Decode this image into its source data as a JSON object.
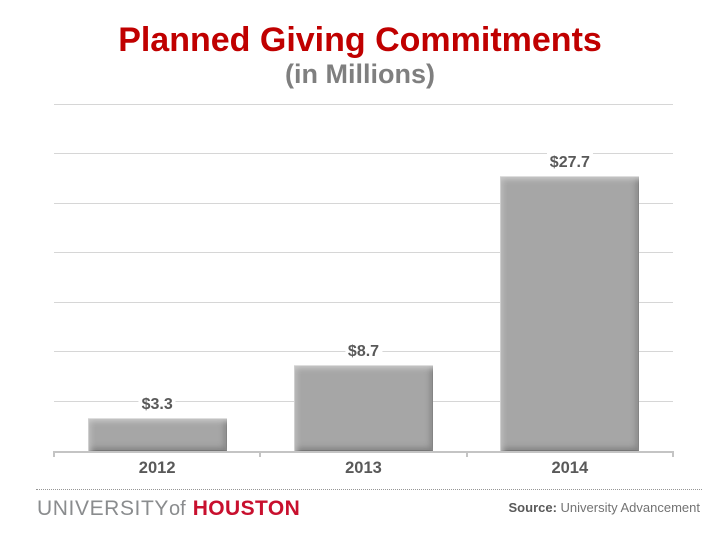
{
  "slide": {
    "title": "Planned Giving Commitments",
    "subtitle": "(in Millions)"
  },
  "chart_data": {
    "type": "bar",
    "title": "Planned Giving Commitments",
    "subtitle": "(in Millions)",
    "categories": [
      "2012",
      "2013",
      "2014"
    ],
    "values": [
      3.3,
      8.7,
      27.7
    ],
    "data_labels": [
      "$3.3",
      "$8.7",
      "$27.7"
    ],
    "xlabel": "",
    "ylabel": "",
    "ylim": [
      0,
      35
    ],
    "gridline_step": 5,
    "grid": "horizontal",
    "legend": "none",
    "bar_color": "#A6A6A6",
    "label_color": "#595959"
  },
  "footer": {
    "logo_university": "UNIVERSITY",
    "logo_of": "of",
    "logo_houston": "HOUSTON",
    "source_label": "Source:",
    "source_value": "University Advancement"
  },
  "colors": {
    "title_red": "#C00000",
    "subtitle_gray": "#7F7F7F",
    "houston_red": "#C8102E",
    "university_gray": "#8A8C8E",
    "gridline": "#D6D6D6",
    "axis": "#C4C4C4"
  }
}
